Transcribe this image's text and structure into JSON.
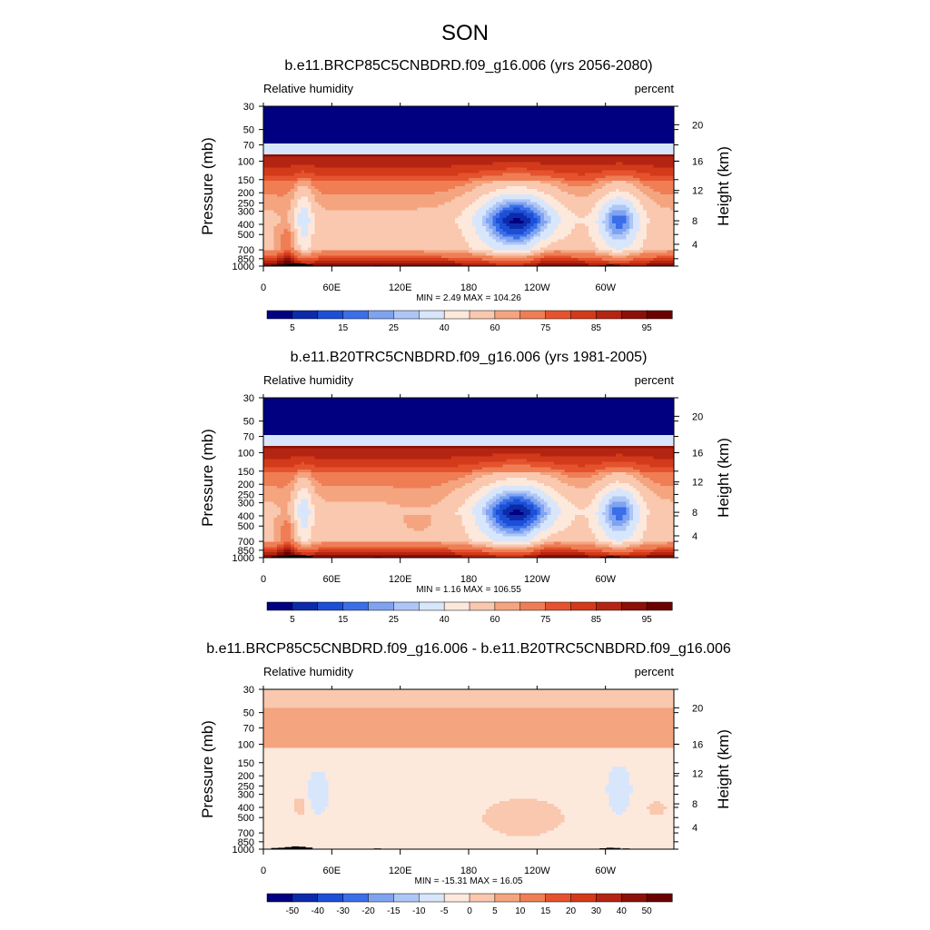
{
  "figure": {
    "title": "SON"
  },
  "palettes": {
    "rh": [
      "#000080",
      "#0c2bab",
      "#1c4fd6",
      "#3a6fe8",
      "#7fa3f0",
      "#aec6f7",
      "#d8e6fb",
      "#fde8dc",
      "#f9c8ae",
      "#f4a47f",
      "#ef7e55",
      "#e5532e",
      "#d33a1a",
      "#b32512",
      "#8c1008",
      "#6b0000"
    ],
    "diff": [
      "#000080",
      "#0c2bab",
      "#1c4fd6",
      "#3a6fe8",
      "#7fa3f0",
      "#aec6f7",
      "#d8e6fb",
      "#fde8dc",
      "#f9c8ae",
      "#f4a47f",
      "#ef7e55",
      "#e5532e",
      "#d33a1a",
      "#b32512",
      "#8c1008",
      "#6b0000"
    ]
  },
  "chart_data": [
    {
      "type": "heatmap",
      "title": "b.e11.BRCP85C5CNBDRD.f09_g16.006 (yrs 2056-2080)",
      "left_label": "Relative humidity",
      "right_label": "percent",
      "ylabel": "Pressure (mb)",
      "y2label": "Height (km)",
      "xticks": [
        "0",
        "60E",
        "120E",
        "180",
        "120W",
        "60W"
      ],
      "x_tick_values": [
        0,
        60,
        120,
        180,
        240,
        300
      ],
      "xlim": [
        0,
        360
      ],
      "yticks": [
        "30",
        "50",
        "70",
        "100",
        "150",
        "200",
        "250",
        "300",
        "400",
        "500",
        "700",
        "850",
        "1000"
      ],
      "y_tick_values": [
        30,
        50,
        70,
        100,
        150,
        200,
        250,
        300,
        400,
        500,
        700,
        850,
        1000
      ],
      "ylim": [
        1000,
        30
      ],
      "y_scale": "log",
      "y2ticks": [
        "20",
        "16",
        "12",
        "8",
        "4"
      ],
      "y2_tick_pressures": [
        45,
        100,
        190,
        370,
        620
      ],
      "stats": "MIN =   2.49  MAX = 104.26",
      "colorbar_labels": [
        "5",
        "15",
        "25",
        "40",
        "60",
        "75",
        "85",
        "95"
      ],
      "palette": "rh",
      "field": "rh",
      "variant": 0
    },
    {
      "type": "heatmap",
      "title": "b.e11.B20TRC5CNBDRD.f09_g16.006 (yrs 1981-2005)",
      "left_label": "Relative humidity",
      "right_label": "percent",
      "ylabel": "Pressure (mb)",
      "y2label": "Height (km)",
      "xticks": [
        "0",
        "60E",
        "120E",
        "180",
        "120W",
        "60W"
      ],
      "x_tick_values": [
        0,
        60,
        120,
        180,
        240,
        300
      ],
      "xlim": [
        0,
        360
      ],
      "yticks": [
        "30",
        "50",
        "70",
        "100",
        "150",
        "200",
        "250",
        "300",
        "400",
        "500",
        "700",
        "850",
        "1000"
      ],
      "y_tick_values": [
        30,
        50,
        70,
        100,
        150,
        200,
        250,
        300,
        400,
        500,
        700,
        850,
        1000
      ],
      "ylim": [
        1000,
        30
      ],
      "y_scale": "log",
      "y2ticks": [
        "20",
        "16",
        "12",
        "8",
        "4"
      ],
      "y2_tick_pressures": [
        45,
        100,
        190,
        370,
        620
      ],
      "stats": "MIN =   1.16  MAX = 106.55",
      "colorbar_labels": [
        "5",
        "15",
        "25",
        "40",
        "60",
        "75",
        "85",
        "95"
      ],
      "palette": "rh",
      "field": "rh",
      "variant": 1
    },
    {
      "type": "heatmap",
      "title": "b.e11.BRCP85C5CNBDRD.f09_g16.006 - b.e11.B20TRC5CNBDRD.f09_g16.006",
      "left_label": "Relative humidity",
      "right_label": "percent",
      "ylabel": "Pressure (mb)",
      "y2label": "Height (km)",
      "xticks": [
        "0",
        "60E",
        "120E",
        "180",
        "120W",
        "60W"
      ],
      "x_tick_values": [
        0,
        60,
        120,
        180,
        240,
        300
      ],
      "xlim": [
        0,
        360
      ],
      "yticks": [
        "30",
        "50",
        "70",
        "100",
        "150",
        "200",
        "250",
        "300",
        "400",
        "500",
        "700",
        "850",
        "1000"
      ],
      "y_tick_values": [
        30,
        50,
        70,
        100,
        150,
        200,
        250,
        300,
        400,
        500,
        700,
        850,
        1000
      ],
      "ylim": [
        1000,
        30
      ],
      "y_scale": "log",
      "y2ticks": [
        "20",
        "16",
        "12",
        "8",
        "4"
      ],
      "y2_tick_pressures": [
        45,
        100,
        190,
        370,
        620
      ],
      "stats": "MIN = -15.31  MAX =  16.05",
      "colorbar_labels": [
        "-50",
        "-40",
        "-30",
        "-20",
        "-15",
        "-10",
        "-5",
        "0",
        "5",
        "10",
        "15",
        "20",
        "30",
        "40",
        "50"
      ],
      "palette": "diff",
      "field": "diff",
      "variant": 2
    }
  ]
}
